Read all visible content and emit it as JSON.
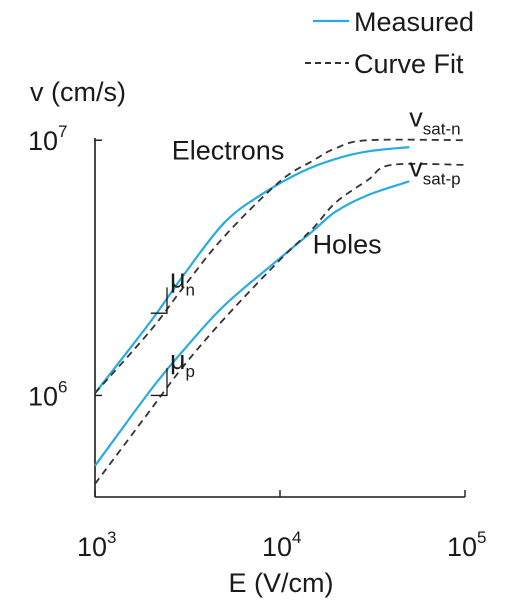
{
  "colors": {
    "measured": "#29abe2",
    "fit": "#333333",
    "axis": "#1a1a1a",
    "text": "#1a1a1a"
  },
  "chart_data": {
    "type": "line",
    "title": "",
    "x_scale": "log",
    "y_scale": "log",
    "xlim": [
      1000,
      100000
    ],
    "ylim": [
      400000,
      12000000
    ],
    "xlabel": "E (V/cm)",
    "ylabel": "v (cm/s)",
    "x_ticks": [
      {
        "value": 1000,
        "base": "10",
        "exp": "3"
      },
      {
        "value": 10000,
        "base": "10",
        "exp": "4"
      },
      {
        "value": 100000,
        "base": "10",
        "exp": "5"
      }
    ],
    "y_ticks": [
      {
        "value": 1000000,
        "base": "10",
        "exp": "6"
      },
      {
        "value": 10000000,
        "base": "10",
        "exp": "7"
      }
    ],
    "legend": {
      "position": "top-right",
      "entries": [
        {
          "label": "Measured",
          "style": "solid",
          "color": "#29abe2"
        },
        {
          "label": "Curve Fit",
          "style": "dashed",
          "color": "#333333"
        }
      ]
    },
    "series": [
      {
        "style": "solid",
        "color": "#29abe2",
        "points": [
          [
            1000,
            1020000
          ],
          [
            2000,
            1950000
          ],
          [
            3000,
            2950000
          ],
          [
            5000,
            4750000
          ],
          [
            8000,
            6150000
          ],
          [
            13000,
            7500000
          ],
          [
            20000,
            8450000
          ],
          [
            30000,
            9050000
          ],
          [
            50000,
            9400000
          ]
        ]
      },
      {
        "style": "dashed",
        "color": "#333333",
        "points": [
          [
            1000,
            1020000
          ],
          [
            2000,
            1800000
          ],
          [
            3000,
            2650000
          ],
          [
            5000,
            4200000
          ],
          [
            10000,
            6900000
          ],
          [
            15000,
            8300000
          ],
          [
            20000,
            9300000
          ],
          [
            30000,
            10000000
          ],
          [
            100000,
            10000000
          ]
        ]
      },
      {
        "style": "solid",
        "color": "#29abe2",
        "points": [
          [
            1000,
            530000
          ],
          [
            2000,
            1050000
          ],
          [
            3000,
            1500000
          ],
          [
            5000,
            2250000
          ],
          [
            10000,
            3450000
          ],
          [
            15000,
            4400000
          ],
          [
            20000,
            5250000
          ],
          [
            30000,
            6100000
          ],
          [
            50000,
            6900000
          ]
        ]
      },
      {
        "style": "dashed",
        "color": "#333333",
        "points": [
          [
            1000,
            450000
          ],
          [
            2000,
            880000
          ],
          [
            3000,
            1300000
          ],
          [
            5000,
            2000000
          ],
          [
            10000,
            3400000
          ],
          [
            15000,
            4500000
          ],
          [
            20000,
            5700000
          ],
          [
            30000,
            7000000
          ],
          [
            40000,
            8000000
          ],
          [
            100000,
            8000000
          ]
        ]
      }
    ],
    "annotations": [
      {
        "id": "electrons",
        "text": "Electrons",
        "x": 2600,
        "y": 8400000
      },
      {
        "id": "holes",
        "text": "Holes",
        "x": 15000,
        "y": 3600000
      },
      {
        "id": "vsatn",
        "text": "v",
        "sub": "sat-n",
        "x": 50000,
        "y": 11300000
      },
      {
        "id": "vsatp",
        "text": "v",
        "sub": "sat-p",
        "x": 50000,
        "y": 7200000
      },
      {
        "id": "mun",
        "text": "μ",
        "sub": "n",
        "x": 2450,
        "y": 2650000
      },
      {
        "id": "mup",
        "text": "μ",
        "sub": "p",
        "x": 2450,
        "y": 1270000
      }
    ],
    "slope_marks": [
      {
        "x1": 2000,
        "x2": 2450,
        "y1": 2100000,
        "y2": 2650000
      },
      {
        "x1": 2000,
        "x2": 2450,
        "y1": 1000000,
        "y2": 1280000
      }
    ]
  }
}
